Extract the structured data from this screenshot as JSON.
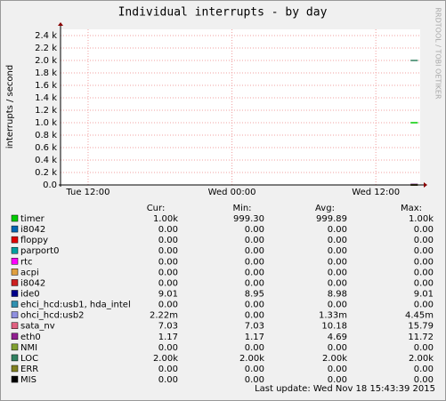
{
  "chart_data": {
    "type": "line",
    "title": "Individual interrupts - by day",
    "y_label": "interrupts / second",
    "watermark": "RRDTOOL / TOBI OETIKER",
    "x": [
      38.9,
      39.2,
      39.5
    ],
    "xlim": [
      9.7,
      39.7
    ],
    "xticks": [
      {
        "value": 12,
        "label": "Tue 12:00"
      },
      {
        "value": 24,
        "label": "Wed 00:00"
      },
      {
        "value": 36,
        "label": "Wed 12:00"
      }
    ],
    "ylim": [
      0,
      2500
    ],
    "yticks": [
      {
        "value": 0,
        "label": "0.0"
      },
      {
        "value": 200,
        "label": "0.2 k"
      },
      {
        "value": 400,
        "label": "0.4 k"
      },
      {
        "value": 600,
        "label": "0.6 k"
      },
      {
        "value": 800,
        "label": "0.8 k"
      },
      {
        "value": 1000,
        "label": "1.0 k"
      },
      {
        "value": 1200,
        "label": "1.2 k"
      },
      {
        "value": 1400,
        "label": "1.4 k"
      },
      {
        "value": 1600,
        "label": "1.6 k"
      },
      {
        "value": 1800,
        "label": "1.8 k"
      },
      {
        "value": 2000,
        "label": "2.0 k"
      },
      {
        "value": 2200,
        "label": "2.2 k"
      },
      {
        "value": 2400,
        "label": "2.4 k"
      }
    ],
    "grid": true,
    "stat_headers": [
      "Cur:",
      "Min:",
      "Avg:",
      "Max:"
    ],
    "series": [
      {
        "name": "timer",
        "color": "#00cc00",
        "values": [
          1000,
          1000,
          1000
        ],
        "stats": [
          "1.00k",
          "999.30",
          "999.89",
          "1.00k"
        ]
      },
      {
        "name": "i8042",
        "color": "#0066b3",
        "values": [
          0,
          0,
          0
        ],
        "stats": [
          "0.00",
          "0.00",
          "0.00",
          "0.00"
        ]
      },
      {
        "name": "floppy",
        "color": "#e00000",
        "values": [
          0,
          0,
          0
        ],
        "stats": [
          "0.00",
          "0.00",
          "0.00",
          "0.00"
        ]
      },
      {
        "name": "parport0",
        "color": "#00a0a0",
        "values": [
          0,
          0,
          0
        ],
        "stats": [
          "0.00",
          "0.00",
          "0.00",
          "0.00"
        ]
      },
      {
        "name": "rtc",
        "color": "#ff00ff",
        "values": [
          0,
          0,
          0
        ],
        "stats": [
          "0.00",
          "0.00",
          "0.00",
          "0.00"
        ]
      },
      {
        "name": "acpi",
        "color": "#e0a040",
        "values": [
          0,
          0,
          0
        ],
        "stats": [
          "0.00",
          "0.00",
          "0.00",
          "0.00"
        ]
      },
      {
        "name": "i8042",
        "color": "#cc2020",
        "values": [
          0,
          0,
          0
        ],
        "stats": [
          "0.00",
          "0.00",
          "0.00",
          "0.00"
        ]
      },
      {
        "name": "ide0",
        "color": "#00008b",
        "values": [
          9.01,
          9.01,
          9.01
        ],
        "stats": [
          "9.01",
          "8.95",
          "8.98",
          "9.01"
        ]
      },
      {
        "name": "ehci_hcd:usb1, hda_intel",
        "color": "#3090b0",
        "values": [
          0,
          0,
          0
        ],
        "stats": [
          "0.00",
          "0.00",
          "0.00",
          "0.00"
        ]
      },
      {
        "name": "ohci_hcd:usb2",
        "color": "#9090e0",
        "values": [
          0,
          0,
          0
        ],
        "stats": [
          "2.22m",
          "0.00",
          "1.33m",
          "4.45m"
        ]
      },
      {
        "name": "sata_nv",
        "color": "#e06080",
        "values": [
          7.03,
          7.03,
          7.03
        ],
        "stats": [
          "7.03",
          "7.03",
          "10.18",
          "15.79"
        ]
      },
      {
        "name": "eth0",
        "color": "#902090",
        "values": [
          1.17,
          1.17,
          1.17
        ],
        "stats": [
          "1.17",
          "1.17",
          "4.69",
          "11.72"
        ]
      },
      {
        "name": "NMI",
        "color": "#80a030",
        "values": [
          0,
          0,
          0
        ],
        "stats": [
          "0.00",
          "0.00",
          "0.00",
          "0.00"
        ]
      },
      {
        "name": "LOC",
        "color": "#308060",
        "values": [
          2000,
          2000,
          2000
        ],
        "stats": [
          "2.00k",
          "2.00k",
          "2.00k",
          "2.00k"
        ]
      },
      {
        "name": "ERR",
        "color": "#808020",
        "values": [
          0,
          0,
          0
        ],
        "stats": [
          "0.00",
          "0.00",
          "0.00",
          "0.00"
        ]
      },
      {
        "name": "MIS",
        "color": "#000000",
        "values": [
          0,
          0,
          0
        ],
        "stats": [
          "0.00",
          "0.00",
          "0.00",
          "0.00"
        ]
      }
    ],
    "last_update": "Last update: Wed Nov 18 15:43:39 2015"
  }
}
